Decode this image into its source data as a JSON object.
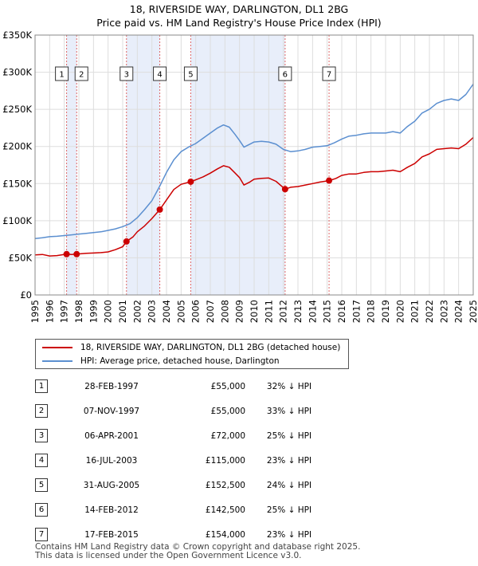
{
  "title_line1": "18, RIVERSIDE WAY, DARLINGTON, DL1 2BG",
  "title_line2": "Price paid vs. HM Land Registry's House Price Index (HPI)",
  "chart_data": {
    "type": "line",
    "title": "18, RIVERSIDE WAY, DARLINGTON, DL1 2BG",
    "subtitle": "Price paid vs. HM Land Registry's House Price Index (HPI)",
    "x_range": [
      1995,
      2025
    ],
    "ylim": [
      0,
      350000
    ],
    "x_ticks": [
      1995,
      1996,
      1997,
      1998,
      1999,
      2000,
      2001,
      2002,
      2003,
      2004,
      2005,
      2006,
      2007,
      2008,
      2009,
      2010,
      2011,
      2012,
      2013,
      2014,
      2015,
      2016,
      2017,
      2018,
      2019,
      2020,
      2021,
      2022,
      2023,
      2024,
      2025
    ],
    "y_ticks": [
      {
        "value": 0,
        "label": "£0"
      },
      {
        "value": 50000,
        "label": "£50K"
      },
      {
        "value": 100000,
        "label": "£100K"
      },
      {
        "value": 150000,
        "label": "£150K"
      },
      {
        "value": 200000,
        "label": "£200K"
      },
      {
        "value": 250000,
        "label": "£250K"
      },
      {
        "value": 300000,
        "label": "£300K"
      },
      {
        "value": 350000,
        "label": "£350K"
      }
    ],
    "colors": {
      "price": "#cc0000",
      "hpi": "#5b8fd0",
      "band": "#e8eefa",
      "vline": "#dd6666",
      "grid": "#dddddd"
    },
    "series": [
      {
        "name": "18, RIVERSIDE WAY, DARLINGTON, DL1 2BG (detached house)",
        "key": "price",
        "points": [
          [
            1995.0,
            54000
          ],
          [
            1995.5,
            54500
          ],
          [
            1996.0,
            52500
          ],
          [
            1996.5,
            53000
          ],
          [
            1997.16,
            55000
          ],
          [
            1997.5,
            54500
          ],
          [
            1997.85,
            55000
          ],
          [
            1998.5,
            56000
          ],
          [
            1999.0,
            56500
          ],
          [
            1999.5,
            57000
          ],
          [
            2000.0,
            58000
          ],
          [
            2000.5,
            61000
          ],
          [
            2001.0,
            65000
          ],
          [
            2001.26,
            72000
          ],
          [
            2001.7,
            78000
          ],
          [
            2002.0,
            85000
          ],
          [
            2002.5,
            93000
          ],
          [
            2003.0,
            103000
          ],
          [
            2003.54,
            115000
          ],
          [
            2004.0,
            128000
          ],
          [
            2004.5,
            142000
          ],
          [
            2005.0,
            149000
          ],
          [
            2005.66,
            152500
          ],
          [
            2006.0,
            155000
          ],
          [
            2006.5,
            159000
          ],
          [
            2007.0,
            164000
          ],
          [
            2007.5,
            170000
          ],
          [
            2007.9,
            174000
          ],
          [
            2008.3,
            172000
          ],
          [
            2008.7,
            164000
          ],
          [
            2009.0,
            158000
          ],
          [
            2009.3,
            148000
          ],
          [
            2009.7,
            152000
          ],
          [
            2010.0,
            156000
          ],
          [
            2010.5,
            157000
          ],
          [
            2011.0,
            157500
          ],
          [
            2011.5,
            153000
          ],
          [
            2012.12,
            142500
          ],
          [
            2012.5,
            145000
          ],
          [
            2013.0,
            146000
          ],
          [
            2013.5,
            148000
          ],
          [
            2014.0,
            150000
          ],
          [
            2014.5,
            152000
          ],
          [
            2015.13,
            154000
          ],
          [
            2015.6,
            157000
          ],
          [
            2016.0,
            161000
          ],
          [
            2016.5,
            163000
          ],
          [
            2017.0,
            163000
          ],
          [
            2017.5,
            165000
          ],
          [
            2018.0,
            166000
          ],
          [
            2018.5,
            166000
          ],
          [
            2019.0,
            167000
          ],
          [
            2019.5,
            168000
          ],
          [
            2020.0,
            166000
          ],
          [
            2020.5,
            172000
          ],
          [
            2021.0,
            177000
          ],
          [
            2021.5,
            186000
          ],
          [
            2022.0,
            190000
          ],
          [
            2022.5,
            196000
          ],
          [
            2023.0,
            197000
          ],
          [
            2023.5,
            198000
          ],
          [
            2024.0,
            197000
          ],
          [
            2024.5,
            203000
          ],
          [
            2025.0,
            212000
          ]
        ]
      },
      {
        "name": "HPI: Average price, detached house, Darlington",
        "key": "hpi",
        "points": [
          [
            1995.0,
            76000
          ],
          [
            1995.5,
            77000
          ],
          [
            1996.0,
            78500
          ],
          [
            1996.5,
            79000
          ],
          [
            1997.0,
            80000
          ],
          [
            1997.5,
            81000
          ],
          [
            1998.0,
            82000
          ],
          [
            1998.5,
            83000
          ],
          [
            1999.0,
            84000
          ],
          [
            1999.5,
            85000
          ],
          [
            2000.0,
            87000
          ],
          [
            2000.5,
            89000
          ],
          [
            2001.0,
            92000
          ],
          [
            2001.5,
            96000
          ],
          [
            2002.0,
            104000
          ],
          [
            2002.5,
            115000
          ],
          [
            2003.0,
            127000
          ],
          [
            2003.5,
            145000
          ],
          [
            2004.0,
            165000
          ],
          [
            2004.5,
            182000
          ],
          [
            2005.0,
            193000
          ],
          [
            2005.5,
            199000
          ],
          [
            2006.0,
            204000
          ],
          [
            2006.5,
            211000
          ],
          [
            2007.0,
            218000
          ],
          [
            2007.5,
            225000
          ],
          [
            2007.9,
            229000
          ],
          [
            2008.3,
            226000
          ],
          [
            2008.7,
            216000
          ],
          [
            2009.0,
            208000
          ],
          [
            2009.3,
            199000
          ],
          [
            2009.7,
            203000
          ],
          [
            2010.0,
            206000
          ],
          [
            2010.5,
            207000
          ],
          [
            2011.0,
            206000
          ],
          [
            2011.5,
            203000
          ],
          [
            2012.0,
            196000
          ],
          [
            2012.5,
            193000
          ],
          [
            2013.0,
            194000
          ],
          [
            2013.5,
            196000
          ],
          [
            2014.0,
            199000
          ],
          [
            2014.5,
            200000
          ],
          [
            2015.0,
            201000
          ],
          [
            2015.5,
            205000
          ],
          [
            2016.0,
            210000
          ],
          [
            2016.5,
            214000
          ],
          [
            2017.0,
            215000
          ],
          [
            2017.5,
            217000
          ],
          [
            2018.0,
            218000
          ],
          [
            2018.5,
            218000
          ],
          [
            2019.0,
            218000
          ],
          [
            2019.5,
            220000
          ],
          [
            2020.0,
            218000
          ],
          [
            2020.5,
            227000
          ],
          [
            2021.0,
            234000
          ],
          [
            2021.5,
            245000
          ],
          [
            2022.0,
            250000
          ],
          [
            2022.5,
            258000
          ],
          [
            2023.0,
            262000
          ],
          [
            2023.5,
            264000
          ],
          [
            2024.0,
            262000
          ],
          [
            2024.5,
            270000
          ],
          [
            2025.0,
            284000
          ]
        ]
      }
    ],
    "sales": [
      {
        "n": "1",
        "date": "28-FEB-1997",
        "year": 1997.16,
        "price_value": 55000,
        "price": "£55,000",
        "hpi": "32% ↓ HPI"
      },
      {
        "n": "2",
        "date": "07-NOV-1997",
        "year": 1997.85,
        "price_value": 55000,
        "price": "£55,000",
        "hpi": "33% ↓ HPI"
      },
      {
        "n": "3",
        "date": "06-APR-2001",
        "year": 2001.26,
        "price_value": 72000,
        "price": "£72,000",
        "hpi": "25% ↓ HPI"
      },
      {
        "n": "4",
        "date": "16-JUL-2003",
        "year": 2003.54,
        "price_value": 115000,
        "price": "£115,000",
        "hpi": "23% ↓ HPI"
      },
      {
        "n": "5",
        "date": "31-AUG-2005",
        "year": 2005.66,
        "price_value": 152500,
        "price": "£152,500",
        "hpi": "24% ↓ HPI"
      },
      {
        "n": "6",
        "date": "14-FEB-2012",
        "year": 2012.12,
        "price_value": 142500,
        "price": "£142,500",
        "hpi": "25% ↓ HPI"
      },
      {
        "n": "7",
        "date": "17-FEB-2015",
        "year": 2015.13,
        "price_value": 154000,
        "price": "£154,000",
        "hpi": "23% ↓ HPI"
      }
    ],
    "shaded_ranges": [
      [
        1997.16,
        1997.85
      ],
      [
        2001.26,
        2003.54
      ],
      [
        2005.66,
        2012.12
      ]
    ]
  },
  "legend": {
    "price_label": "18, RIVERSIDE WAY, DARLINGTON, DL1 2BG (detached house)",
    "hpi_label": "HPI: Average price, detached house, Darlington"
  },
  "footer": {
    "line1": "Contains HM Land Registry data © Crown copyright and database right 2025.",
    "line2": "This data is licensed under the Open Government Licence v3.0."
  }
}
